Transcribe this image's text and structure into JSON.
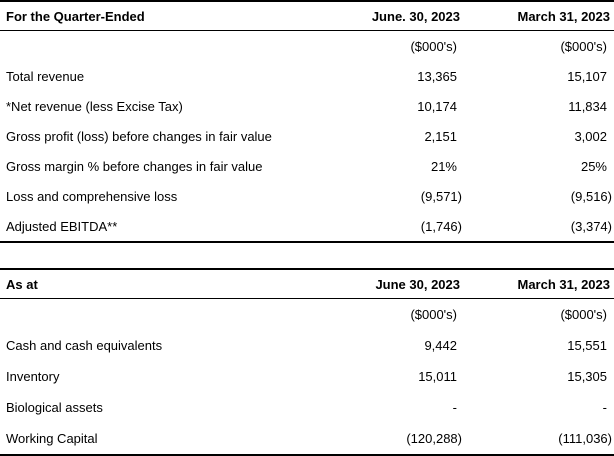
{
  "tables": [
    {
      "header": {
        "col1": "For the Quarter-Ended",
        "col2": "June. 30, 2023",
        "col3": "March 31, 2023"
      },
      "subheader": {
        "col2": "($000's)",
        "col3": "($000's)"
      },
      "rows": [
        {
          "label": "Total revenue",
          "col2": "13,365",
          "col3": "15,107"
        },
        {
          "label": "*Net revenue (less Excise Tax)",
          "col2": "10,174",
          "col3": "11,834"
        },
        {
          "label": "Gross profit (loss) before changes in fair value",
          "col2": "2,151",
          "col3": "3,002"
        },
        {
          "label": "Gross margin % before changes in fair value",
          "col2": "21%",
          "col3": "25%"
        },
        {
          "label": "Loss and comprehensive loss",
          "col2": "(9,571)",
          "col3": "(9,516)"
        },
        {
          "label": "Adjusted EBITDA**",
          "col2": "(1,746)",
          "col3": "(3,374)"
        }
      ]
    },
    {
      "header": {
        "col1": "As at",
        "col2": "June 30, 2023",
        "col3": "March 31, 2023"
      },
      "subheader": {
        "col2": "($000's)",
        "col3": "($000's)"
      },
      "rows": [
        {
          "label": "Cash and cash equivalents",
          "col2": "9,442",
          "col3": "15,551"
        },
        {
          "label": "Inventory",
          "col2": "15,011",
          "col3": "15,305"
        },
        {
          "label": "Biological assets",
          "col2": "-",
          "col3": "-"
        },
        {
          "label": "Working Capital",
          "col2": "(120,288)",
          "col3": "(111,036)"
        }
      ]
    }
  ],
  "colors": {
    "text": "#000000",
    "background": "#ffffff",
    "rule": "#000000"
  }
}
